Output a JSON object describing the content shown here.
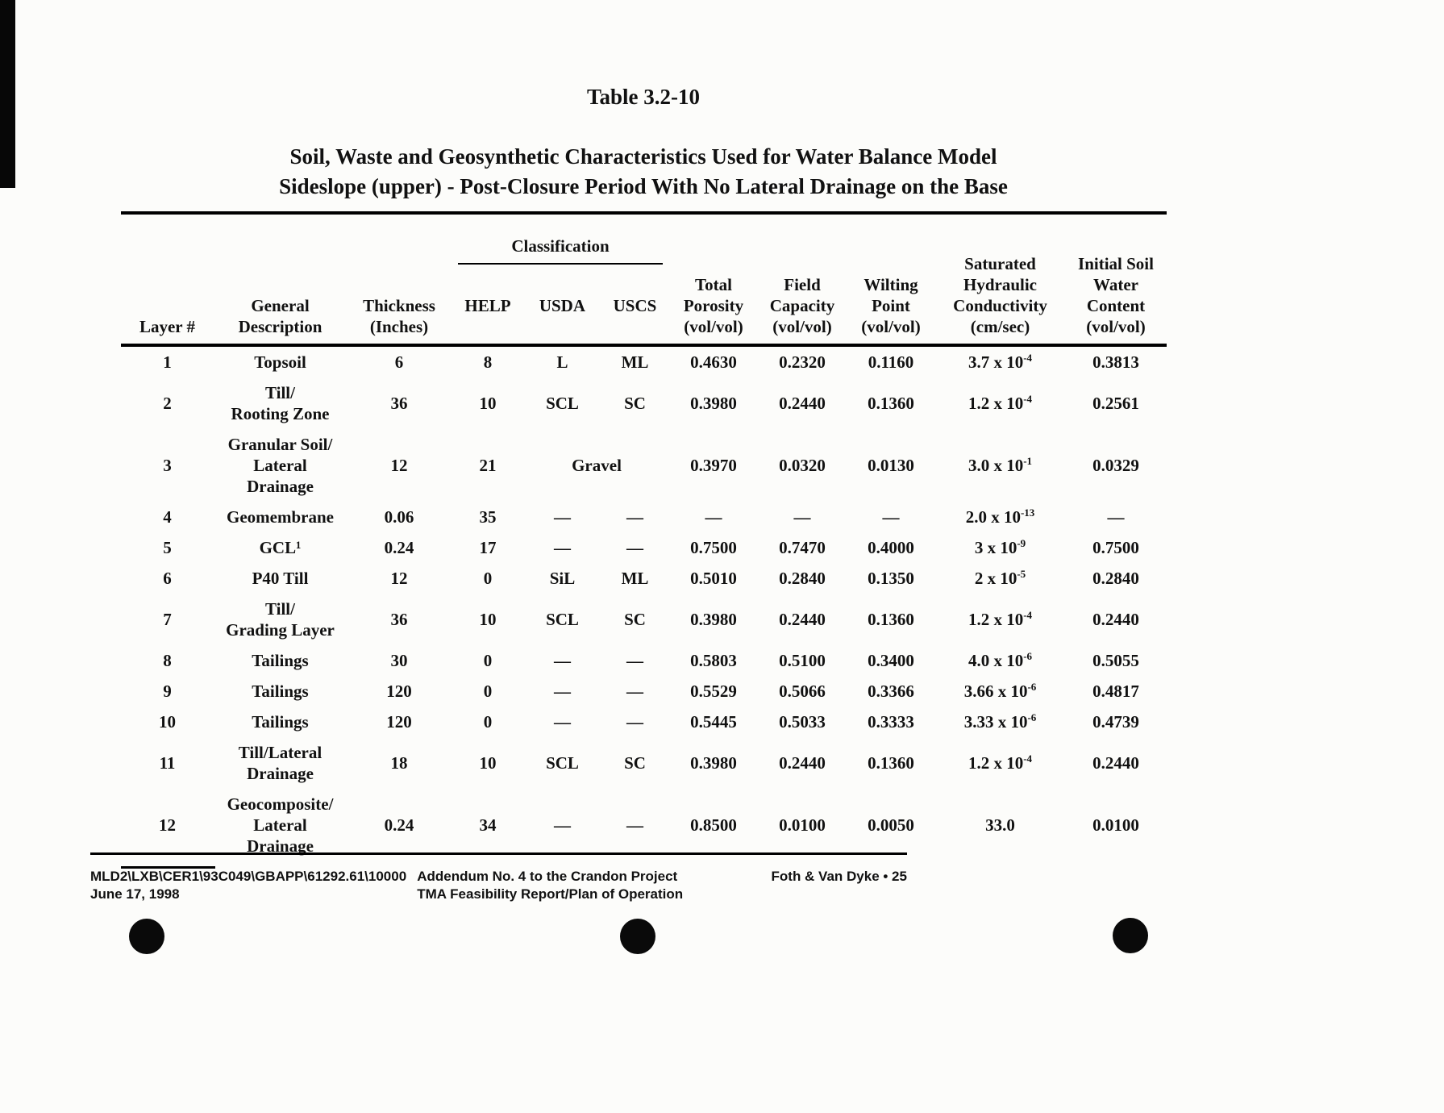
{
  "titles": {
    "table_number": "Table 3.2-10",
    "heading_line1": "Soil, Waste and Geosynthetic Characteristics Used for Water Balance Model",
    "heading_line2": "Sideslope (upper) - Post-Closure Period With No Lateral Drainage on the Base"
  },
  "table": {
    "classification_label": "Classification",
    "headers": {
      "layer": "Layer #",
      "description": "General\nDescription",
      "thickness": "Thickness\n(Inches)",
      "help": "HELP",
      "usda": "USDA",
      "uscs": "USCS",
      "porosity": "Total\nPorosity\n(vol/vol)",
      "field_capacity": "Field\nCapacity\n(vol/vol)",
      "wilting_point": "Wilting\nPoint\n(vol/vol)",
      "conductivity": "Saturated\nHydraulic\nConductivity\n(cm/sec)",
      "initial_water": "Initial Soil\nWater\nContent\n(vol/vol)"
    },
    "rows": [
      {
        "layer": "1",
        "description": "Topsoil",
        "thickness": "6",
        "help": "8",
        "usda": "L",
        "uscs": "ML",
        "porosity": "0.4630",
        "field_capacity": "0.2320",
        "wilting_point": "0.1160",
        "conductivity": {
          "mantissa": "3.7 x 10",
          "exponent": "-4"
        },
        "initial_water": "0.3813"
      },
      {
        "layer": "2",
        "description": "Till/\nRooting Zone",
        "thickness": "36",
        "help": "10",
        "usda": "SCL",
        "uscs": "SC",
        "porosity": "0.3980",
        "field_capacity": "0.2440",
        "wilting_point": "0.1360",
        "conductivity": {
          "mantissa": "1.2 x 10",
          "exponent": "-4"
        },
        "initial_water": "0.2561"
      },
      {
        "layer": "3",
        "description": "Granular Soil/\nLateral\nDrainage",
        "thickness": "12",
        "help": "21",
        "usda": {
          "text": "Gravel",
          "colspan": 2
        },
        "uscs": null,
        "porosity": "0.3970",
        "field_capacity": "0.0320",
        "wilting_point": "0.0130",
        "conductivity": {
          "mantissa": "3.0 x 10",
          "exponent": "-1"
        },
        "initial_water": "0.0329"
      },
      {
        "layer": "4",
        "description": "Geomembrane",
        "thickness": "0.06",
        "help": "35",
        "usda": "—",
        "uscs": "—",
        "porosity": "—",
        "field_capacity": "—",
        "wilting_point": "—",
        "conductivity": {
          "mantissa": "2.0 x 10",
          "exponent": "-13"
        },
        "initial_water": "—"
      },
      {
        "layer": "5",
        "description": "GCL¹",
        "thickness": "0.24",
        "help": "17",
        "usda": "—",
        "uscs": "—",
        "porosity": "0.7500",
        "field_capacity": "0.7470",
        "wilting_point": "0.4000",
        "conductivity": {
          "mantissa": "3 x 10",
          "exponent": "-9"
        },
        "initial_water": "0.7500"
      },
      {
        "layer": "6",
        "description": "P40 Till",
        "thickness": "12",
        "help": "0",
        "usda": "SiL",
        "uscs": "ML",
        "porosity": "0.5010",
        "field_capacity": "0.2840",
        "wilting_point": "0.1350",
        "conductivity": {
          "mantissa": "2 x 10",
          "exponent": "-5"
        },
        "initial_water": "0.2840"
      },
      {
        "layer": "7",
        "description": "Till/\nGrading Layer",
        "thickness": "36",
        "help": "10",
        "usda": "SCL",
        "uscs": "SC",
        "porosity": "0.3980",
        "field_capacity": "0.2440",
        "wilting_point": "0.1360",
        "conductivity": {
          "mantissa": "1.2 x 10",
          "exponent": "-4"
        },
        "initial_water": "0.2440"
      },
      {
        "layer": "8",
        "description": "Tailings",
        "thickness": "30",
        "help": "0",
        "usda": "—",
        "uscs": "—",
        "porosity": "0.5803",
        "field_capacity": "0.5100",
        "wilting_point": "0.3400",
        "conductivity": {
          "mantissa": "4.0 x 10",
          "exponent": "-6"
        },
        "initial_water": "0.5055"
      },
      {
        "layer": "9",
        "description": "Tailings",
        "thickness": "120",
        "help": "0",
        "usda": "—",
        "uscs": "—",
        "porosity": "0.5529",
        "field_capacity": "0.5066",
        "wilting_point": "0.3366",
        "conductivity": {
          "mantissa": "3.66 x 10",
          "exponent": "-6"
        },
        "initial_water": "0.4817"
      },
      {
        "layer": "10",
        "description": "Tailings",
        "thickness": "120",
        "help": "0",
        "usda": "—",
        "uscs": "—",
        "porosity": "0.5445",
        "field_capacity": "0.5033",
        "wilting_point": "0.3333",
        "conductivity": {
          "mantissa": "3.33 x 10",
          "exponent": "-6"
        },
        "initial_water": "0.4739"
      },
      {
        "layer": "11",
        "description": "Till/Lateral\nDrainage",
        "thickness": "18",
        "help": "10",
        "usda": "SCL",
        "uscs": "SC",
        "porosity": "0.3980",
        "field_capacity": "0.2440",
        "wilting_point": "0.1360",
        "conductivity": {
          "mantissa": "1.2 x 10",
          "exponent": "-4"
        },
        "initial_water": "0.2440"
      },
      {
        "layer": "12",
        "description": "Geocomposite/\nLateral\nDrainage",
        "thickness": "0.24",
        "help": "34",
        "usda": "—",
        "uscs": "—",
        "porosity": "0.8500",
        "field_capacity": "0.0100",
        "wilting_point": "0.0050",
        "conductivity": "33.0",
        "initial_water": "0.0100"
      }
    ]
  },
  "footer": {
    "file_ref": "MLD2\\LXB\\CER1\\93C049\\GBAPP\\61292.61\\10000",
    "date": "June 17, 1998",
    "doc_line1": "Addendum No. 4 to the Crandon Project",
    "doc_line2": "TMA Feasibility Report/Plan of Operation",
    "page_ref": "Foth & Van Dyke • 25"
  }
}
